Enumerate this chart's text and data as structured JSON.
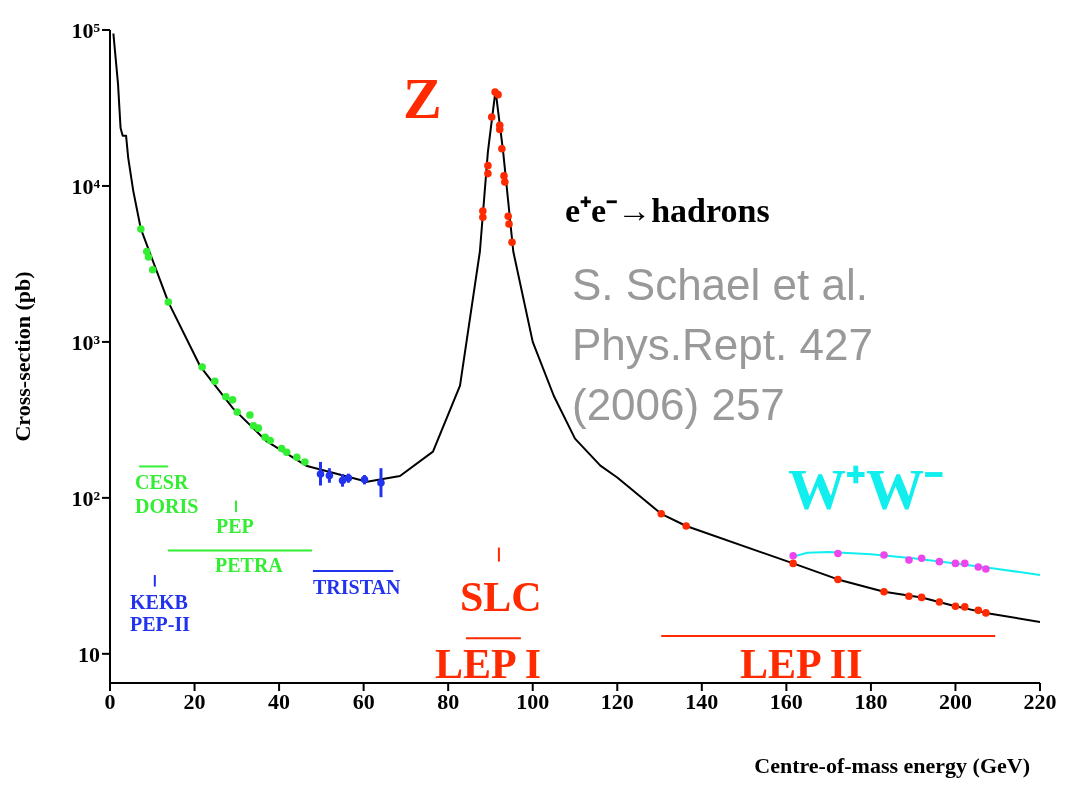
{
  "chart_data": {
    "type": "scatter",
    "xlabel": "Centre-of-mass energy (GeV)",
    "ylabel": "Cross-section (pb)",
    "xlim": [
      0,
      220
    ],
    "xticks": [
      0,
      20,
      40,
      60,
      80,
      100,
      120,
      140,
      160,
      180,
      200,
      220
    ],
    "ylim": [
      6.5,
      100000
    ],
    "yticks": [
      10,
      {
        "value": 100,
        "label": "10²"
      },
      {
        "value": 1000,
        "label": "10³"
      },
      {
        "value": 10000,
        "label": "10⁴"
      },
      {
        "value": 100000,
        "label": "10⁵"
      }
    ],
    "log": "y",
    "marker": "circle",
    "annotations": [
      {
        "text": "Z",
        "x": 91.1,
        "y": 40000
      },
      "S. Schael et al.",
      "Phys.Rept. 427",
      "(2006) 257",
      {
        "text": "CESR\nDORIS",
        "x": 6.9,
        "y": 159
      },
      {
        "text": "PEP",
        "x": 29.8,
        "y": 96
      },
      {
        "text": "PETRA",
        "x": 13.7,
        "y": 46
      },
      {
        "text": "KEKB\nPEP-II",
        "x": 10.6,
        "y": 32
      },
      {
        "text": "TRISTAN",
        "x": 48,
        "y": 34
      },
      {
        "text": "SLC",
        "x": 92,
        "y": 48
      },
      {
        "text": "LEP I",
        "x": 84.2,
        "y": 12.6
      },
      {
        "text": "LEP II",
        "x": 130.4,
        "y": 13
      }
    ],
    "series": [
      {
        "type": "line",
        "marker": "none",
        "name": "e⁺e⁻→hadrons",
        "color": "#000000",
        "x": [
          0.8,
          1.9,
          2.5,
          3.0,
          3.8,
          4.3,
          5.5,
          7.3,
          13.8,
          21.3,
          29.1,
          37.1,
          46.6,
          60.8,
          68.6,
          76.4,
          82.8,
          87.5,
          89.4,
          91.2,
          93.0,
          95.4,
          100,
          105,
          110,
          116,
          120,
          130.4,
          136.3,
          161.6,
          172.2,
          183.1,
          192,
          200,
          207.2,
          220
        ],
        "values": [
          95000,
          45000,
          23500,
          21000,
          21000,
          15200,
          9300,
          5300,
          1800,
          700,
          375,
          230,
          160,
          127,
          138,
          198,
          525,
          3800,
          16600,
          41000,
          16600,
          3800,
          1000,
          450,
          240,
          161,
          135,
          79,
          66,
          38,
          30,
          25,
          23,
          20.2,
          18.3,
          16
        ]
      },
      {
        "type": "line",
        "marker": "none",
        "name": "W⁺W⁻",
        "color": "#11eeee",
        "x": [
          161.6,
          165,
          170,
          180,
          190,
          200,
          210,
          220
        ],
        "values": [
          42,
          44.5,
          45,
          43.5,
          41,
          38,
          35,
          32
        ]
      },
      {
        "color": "#33ee33",
        "x": [
          7.3,
          8.7,
          9.1,
          10.1,
          13.8,
          21.8,
          24.8,
          27.4,
          29.0,
          30.1,
          33.1,
          33.9,
          35.1,
          36.7,
          37.9,
          40.6,
          41.8,
          44.2,
          46.1
        ],
        "values": [
          5300,
          3800,
          3500,
          2900,
          1800,
          690,
          560,
          445,
          425,
          355,
          340,
          290,
          280,
          245,
          233,
          207,
          196,
          182,
          170
        ]
      },
      {
        "color": "#2233ee",
        "x": [
          49.8,
          51.9,
          55.0,
          56.4,
          60.2,
          64.1
        ],
        "values": [
          142,
          139,
          129,
          134,
          131,
          125
        ],
        "errors": [
          [
            120,
            170
          ],
          [
            125,
            155
          ],
          [
            118,
            142
          ],
          [
            125,
            143
          ],
          [
            122,
            140
          ],
          [
            101,
            155
          ]
        ]
      },
      {
        "color": "#ff2a00",
        "x": [
          88.2,
          88.2,
          89.4,
          89.4,
          90.3,
          91.1,
          91.8,
          92.2,
          92.2,
          92.7,
          93.2,
          93.4,
          94.2,
          94.4,
          95.1,
          130.4,
          136.3,
          161.6,
          172.2,
          183.1,
          189,
          192,
          196.2,
          200,
          202.2,
          205.4,
          207.2
        ],
        "values": [
          6300,
          6900,
          12000,
          13500,
          27700,
          40000,
          38500,
          24500,
          23000,
          17300,
          11600,
          10600,
          6400,
          5700,
          4350,
          79,
          66,
          38,
          30,
          25,
          23.4,
          23,
          21.5,
          20.2,
          20,
          19,
          18.3
        ]
      },
      {
        "color": "#ee44ee",
        "x": [
          161.6,
          172.2,
          183.1,
          189,
          192,
          196.2,
          200,
          202.2,
          205.4,
          207.2
        ],
        "values": [
          42.6,
          44,
          43,
          40,
          41,
          39,
          38,
          38,
          36,
          35
        ]
      },
      {
        "type": "line",
        "marker": "none",
        "color": "#33ee33",
        "x": [
          6.9,
          13.7
        ],
        "values": [
          159,
          159
        ]
      },
      {
        "type": "line",
        "marker": "none",
        "color": "#33ee33",
        "x": [
          29.8,
          29.8
        ],
        "values": [
          96,
          81
        ]
      },
      {
        "type": "line",
        "marker": "none",
        "color": "#33ee33",
        "x": [
          13.7,
          47.8
        ],
        "values": [
          46,
          46
        ]
      },
      {
        "type": "line",
        "marker": "none",
        "color": "#2233ee",
        "x": [
          10.6,
          10.6
        ],
        "values": [
          32,
          27
        ]
      },
      {
        "type": "line",
        "marker": "none",
        "color": "#2233ee",
        "x": [
          48,
          67
        ],
        "values": [
          34,
          34
        ]
      },
      {
        "type": "line",
        "marker": "none",
        "color": "#ff2a00",
        "x": [
          92,
          92
        ],
        "values": [
          48,
          39
        ]
      },
      {
        "type": "line",
        "marker": "none",
        "color": "#ff2a00",
        "x": [
          84.2,
          97.2
        ],
        "values": [
          12.6,
          12.6
        ]
      },
      {
        "type": "line",
        "marker": "none",
        "color": "#ff2a00",
        "x": [
          130.4,
          209.4
        ],
        "values": [
          13,
          13
        ]
      }
    ]
  }
}
